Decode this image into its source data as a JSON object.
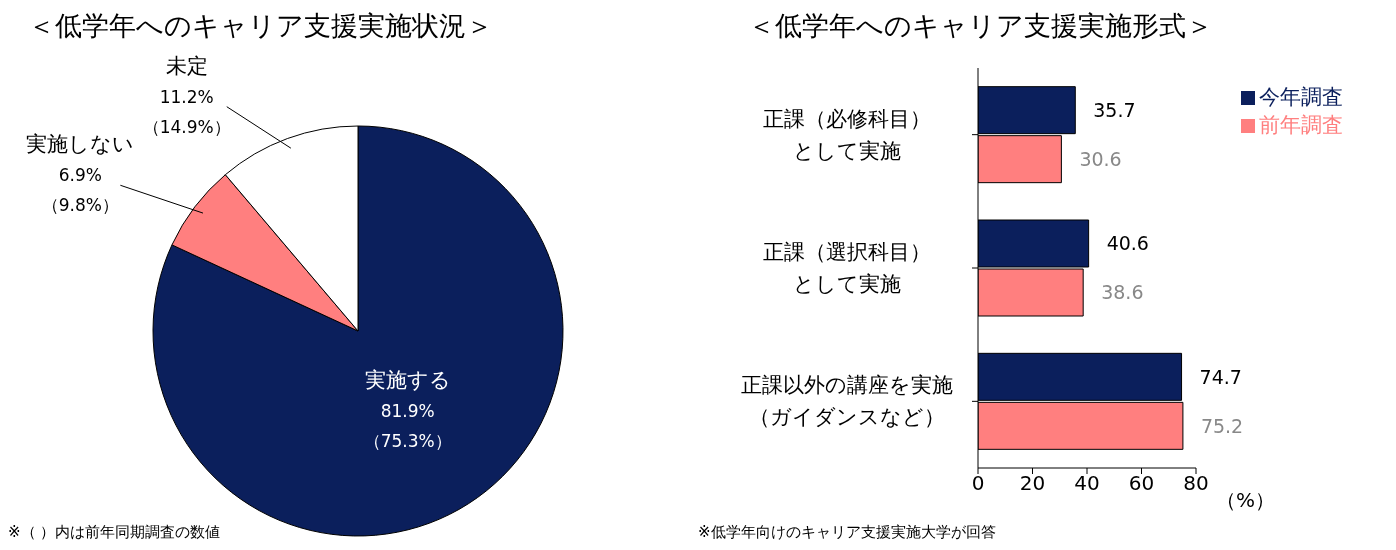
{
  "chart_data": [
    {
      "type": "pie",
      "title": "＜低学年へのキャリア支援実施状況＞",
      "categories": [
        "実施する",
        "実施しない",
        "未定"
      ],
      "values": [
        81.9,
        6.9,
        11.2
      ],
      "colors": [
        "#0b1f5c",
        "#ff7f7f",
        "#ffffff"
      ],
      "value_labels": [
        "81.9%\n（75.3%）",
        "6.9%\n（9.8%）",
        "11.2%\n（14.9%）"
      ],
      "legend": false,
      "annotations": [
        "※（ ）内は前年同期調査の数値"
      ]
    },
    {
      "type": "bar",
      "orientation": "horizontal",
      "title": "＜低学年へのキャリア支援実施形式＞",
      "categories": [
        "正課（必修科目）として実施",
        "正課（選択科目）として実施",
        "正課以外の講座を実施（ガイダンスなど）"
      ],
      "series": [
        {
          "name": "今年調査",
          "color": "#0b1f5c",
          "values": [
            35.7,
            40.6,
            74.7
          ]
        },
        {
          "name": "前年調査",
          "color": "#ff7f7f",
          "values": [
            30.6,
            38.6,
            75.2
          ]
        }
      ],
      "xlim": [
        0,
        80
      ],
      "xticks": [
        0,
        20,
        40,
        60,
        80
      ],
      "xlabel": "（%）",
      "data_labels": true,
      "legend": "top right",
      "grid": false,
      "annotations": [
        "※低学年向けのキャリア支援実施大学が回答"
      ]
    }
  ]
}
